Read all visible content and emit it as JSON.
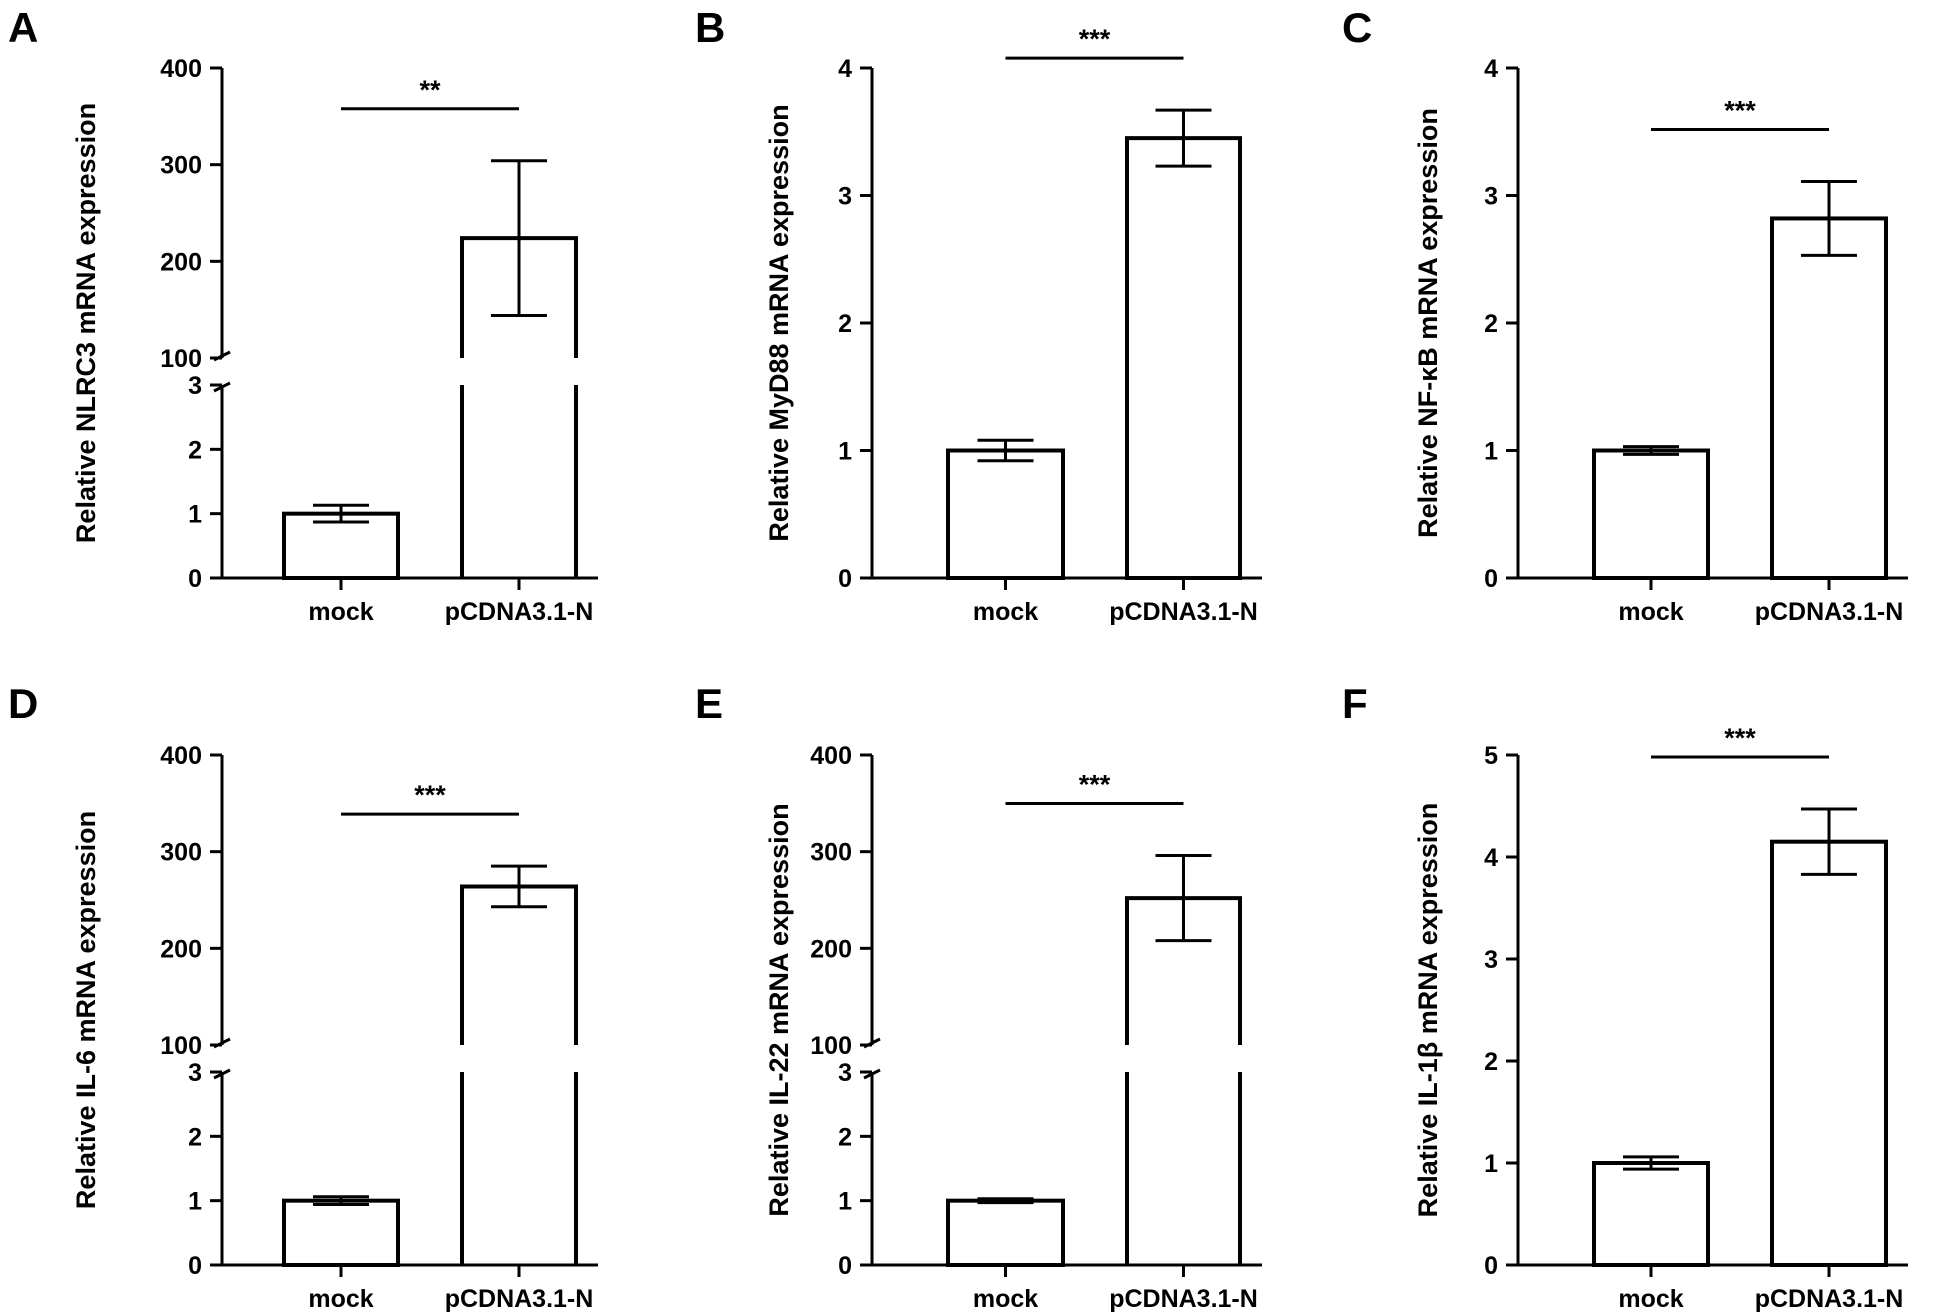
{
  "colors": {
    "bar_fill": "#ffffff",
    "stroke": "#000000"
  },
  "chart_data": [
    {
      "panel": "A",
      "type": "bar",
      "broken_axis": true,
      "ylabel": "Relative NLRC3 mRNA expression",
      "categories": [
        "mock",
        "pCDNA3.1-N"
      ],
      "values": [
        1.0,
        224
      ],
      "errors": [
        0.13,
        80
      ],
      "ylim_lower": [
        0,
        3
      ],
      "ylim_upper": [
        100,
        400
      ],
      "ticks_lower": [
        "0",
        "1",
        "2",
        "3"
      ],
      "ticks_upper": [
        "100",
        "200",
        "300",
        "400"
      ],
      "significance": "**"
    },
    {
      "panel": "B",
      "type": "bar",
      "broken_axis": false,
      "ylabel": "Relative MyD88 mRNA expression",
      "categories": [
        "mock",
        "pCDNA3.1-N"
      ],
      "values": [
        1.0,
        3.45
      ],
      "errors": [
        0.08,
        0.22
      ],
      "ylim": [
        0,
        4
      ],
      "ticks": [
        "0",
        "1",
        "2",
        "3",
        "4"
      ],
      "significance": "***"
    },
    {
      "panel": "C",
      "type": "bar",
      "broken_axis": false,
      "ylabel": "Relative NF-κB mRNA expression",
      "categories": [
        "mock",
        "pCDNA3.1-N"
      ],
      "values": [
        1.0,
        2.82
      ],
      "errors": [
        0.03,
        0.29
      ],
      "ylim": [
        0,
        4
      ],
      "ticks": [
        "0",
        "1",
        "2",
        "3",
        "4"
      ],
      "significance": "***"
    },
    {
      "panel": "D",
      "type": "bar",
      "broken_axis": true,
      "ylabel": "Relative IL-6 mRNA expression",
      "categories": [
        "mock",
        "pCDNA3.1-N"
      ],
      "values": [
        1.0,
        264
      ],
      "errors": [
        0.06,
        21
      ],
      "ylim_lower": [
        0,
        3
      ],
      "ylim_upper": [
        100,
        400
      ],
      "ticks_lower": [
        "0",
        "1",
        "2",
        "3"
      ],
      "ticks_upper": [
        "100",
        "200",
        "300",
        "400"
      ],
      "significance": "***"
    },
    {
      "panel": "E",
      "type": "bar",
      "broken_axis": true,
      "ylabel": "Relative IL-22 mRNA expression",
      "categories": [
        "mock",
        "pCDNA3.1-N"
      ],
      "values": [
        1.0,
        252
      ],
      "errors": [
        0.03,
        44
      ],
      "ylim_lower": [
        0,
        3
      ],
      "ylim_upper": [
        100,
        400
      ],
      "ticks_lower": [
        "0",
        "1",
        "2",
        "3"
      ],
      "ticks_upper": [
        "100",
        "200",
        "300",
        "400"
      ],
      "significance": "***"
    },
    {
      "panel": "F",
      "type": "bar",
      "broken_axis": false,
      "ylabel": "Relative IL-1β mRNA expression",
      "categories": [
        "mock",
        "pCDNA3.1-N"
      ],
      "values": [
        1.0,
        4.15
      ],
      "errors": [
        0.06,
        0.32
      ],
      "ylim": [
        0,
        5
      ],
      "ticks": [
        "0",
        "1",
        "2",
        "3",
        "4",
        "5"
      ],
      "significance": "***"
    }
  ]
}
